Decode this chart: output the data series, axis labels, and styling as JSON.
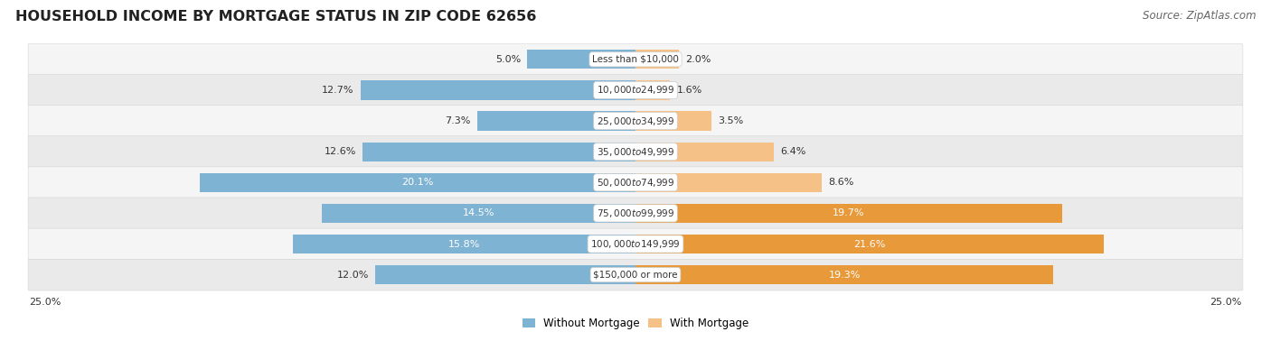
{
  "title": "HOUSEHOLD INCOME BY MORTGAGE STATUS IN ZIP CODE 62656",
  "source": "Source: ZipAtlas.com",
  "categories": [
    "Less than $10,000",
    "$10,000 to $24,999",
    "$25,000 to $34,999",
    "$35,000 to $49,999",
    "$50,000 to $74,999",
    "$75,000 to $99,999",
    "$100,000 to $149,999",
    "$150,000 or more"
  ],
  "without_mortgage": [
    5.0,
    12.7,
    7.3,
    12.6,
    20.1,
    14.5,
    15.8,
    12.0
  ],
  "with_mortgage": [
    2.0,
    1.6,
    3.5,
    6.4,
    8.6,
    19.7,
    21.6,
    19.3
  ],
  "color_without": "#7fb3d3",
  "color_with": "#f5c187",
  "color_with_dark": "#e8993a",
  "axis_limit": 25.0,
  "legend_without": "Without Mortgage",
  "legend_with": "With Mortgage",
  "title_fontsize": 11.5,
  "source_fontsize": 8.5,
  "label_fontsize": 8,
  "bar_height": 0.62,
  "row_bg_light": "#f5f5f5",
  "row_bg_dark": "#eaeaea",
  "fig_width": 14.06,
  "fig_height": 3.78
}
